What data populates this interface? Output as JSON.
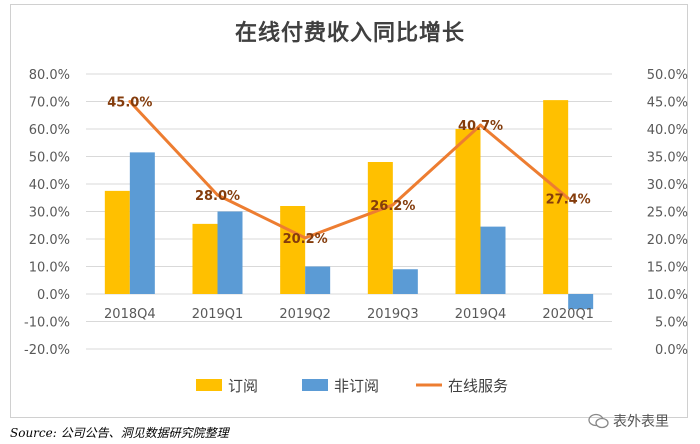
{
  "chart_data": {
    "type": "bar",
    "title": "在线付费收入同比增长",
    "categories": [
      "2018Q4",
      "2019Q1",
      "2019Q2",
      "2019Q3",
      "2019Q4",
      "2020Q1"
    ],
    "series": [
      {
        "name": "订阅",
        "type": "bar",
        "axis": "left",
        "color": "#FFC000",
        "values": [
          37.5,
          25.5,
          32.0,
          48.0,
          60.0,
          70.5
        ]
      },
      {
        "name": "非订阅",
        "type": "bar",
        "axis": "left",
        "color": "#5B9BD5",
        "values": [
          51.5,
          30.0,
          10.0,
          9.0,
          24.5,
          -5.5
        ]
      },
      {
        "name": "在线服务",
        "type": "line",
        "axis": "right",
        "color": "#ED7D31",
        "values": [
          45.0,
          28.0,
          20.2,
          26.2,
          40.7,
          27.4
        ],
        "labels": [
          "45.0%",
          "28.0%",
          "20.2%",
          "26.2%",
          "40.7%",
          "27.4%"
        ]
      }
    ],
    "y_left": {
      "min": -20,
      "max": 80,
      "step": 10,
      "ticks": [
        "80.0%",
        "70.0%",
        "60.0%",
        "50.0%",
        "40.0%",
        "30.0%",
        "20.0%",
        "10.0%",
        "0.0%",
        "-10.0%",
        "-20.0%"
      ]
    },
    "y_right": {
      "min": 0,
      "max": 50,
      "step": 5,
      "ticks": [
        "50.0%",
        "45.0%",
        "40.0%",
        "35.0%",
        "30.0%",
        "25.0%",
        "20.0%",
        "15.0%",
        "10.0%",
        "5.0%",
        "0.0%"
      ]
    },
    "grid": true,
    "legend": "bottom"
  },
  "source": "Source: 公司公告、洞见数据研究院整理",
  "watermark": "表外表里"
}
